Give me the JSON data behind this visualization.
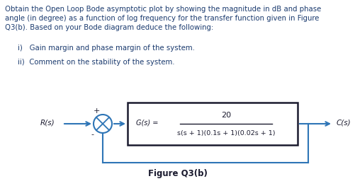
{
  "title_line1": "Obtain the Open Loop Bode asymptotic plot by showing the magnitude in dB and phase",
  "title_line2": "angle (in degree) as a function of log frequency for the transfer function given in Figure",
  "title_line3": "Q3(b). Based on your Bode diagram deduce the following:",
  "item_i": "i)   Gain margin and phase margin of the system.",
  "item_ii": "ii)  Comment on the stability of the system.",
  "gs_label": "G(s) =",
  "numerator": "20",
  "denominator": "s(s + 1)(0.1s + 1)(0.02s + 1)",
  "rs_label": "R(s)",
  "cs_label": "C(s)",
  "fig_label": "Figure Q3(b)",
  "text_color": "#1a3a6e",
  "blue_color": "#2e75b6",
  "box_edge_color": "#1a1a2e",
  "background": "#ffffff"
}
